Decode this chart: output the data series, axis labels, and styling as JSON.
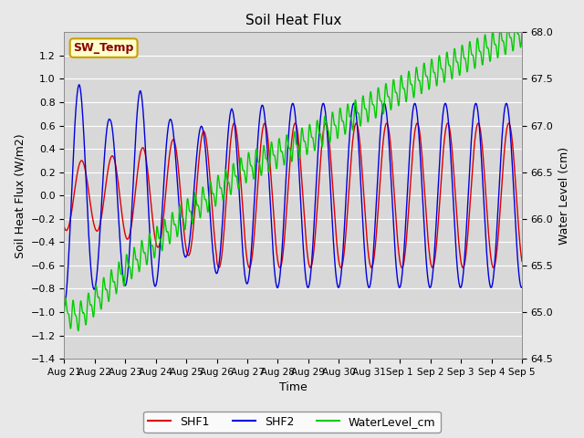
{
  "title": "Soil Heat Flux",
  "ylabel_left": "Soil Heat Flux (W/m2)",
  "ylabel_right": "Water Level (cm)",
  "xlabel": "Time",
  "ylim_left": [
    -1.4,
    1.4
  ],
  "ylim_right": [
    64.5,
    68.0
  ],
  "fig_bg_color": "#e8e8e8",
  "plot_bg_color": "#d8d8d8",
  "grid_color": "#ffffff",
  "annotation_text": "SW_Temp",
  "annotation_bg": "#ffffcc",
  "annotation_border": "#c8a000",
  "annotation_text_color": "#8b0000",
  "shf1_color": "#dd0000",
  "shf2_color": "#0000dd",
  "wl_color": "#00cc00",
  "legend_labels": [
    "SHF1",
    "SHF2",
    "WaterLevel_cm"
  ],
  "x_tick_labels": [
    "Aug 21",
    "Aug 22",
    "Aug 23",
    "Aug 24",
    "Aug 25",
    "Aug 26",
    "Aug 27",
    "Aug 28",
    "Aug 29",
    "Aug 30",
    "Aug 31",
    "Sep 1",
    "Sep 2",
    "Sep 3",
    "Sep 4",
    "Sep 5"
  ],
  "n_days": 15,
  "pts_per_day": 96
}
